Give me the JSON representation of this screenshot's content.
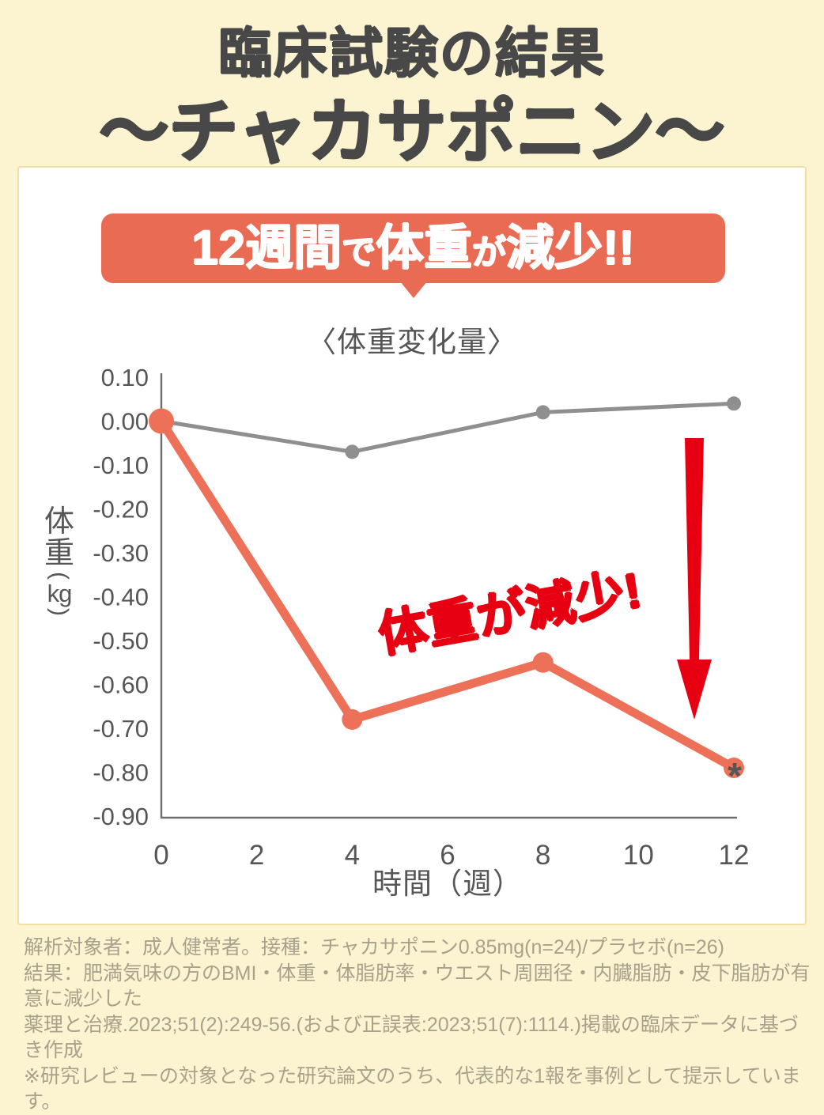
{
  "header": {
    "title_line1": "臨床試験の結果",
    "title_line2": "〜チャカサポニン〜"
  },
  "banner": {
    "segments": [
      "12週間",
      "で",
      "体重",
      "が",
      "減少!!"
    ]
  },
  "chart_data": {
    "type": "line",
    "title": "〈体重変化量〉",
    "xlabel": "時間（週）",
    "ylabel": "体重(kg)",
    "x": [
      0,
      4,
      8,
      12
    ],
    "xticks": [
      "0",
      "2",
      "4",
      "6",
      "8",
      "10",
      "12"
    ],
    "yticks": [
      "0.10",
      "0.00",
      "-0.10",
      "-0.20",
      "-0.30",
      "-0.40",
      "-0.50",
      "-0.60",
      "-0.70",
      "-0.80",
      "-0.90"
    ],
    "xlim": [
      0,
      12
    ],
    "ylim": [
      -0.9,
      0.1
    ],
    "grid": false,
    "legend": "none",
    "series": [
      {
        "name": "placebo-gray",
        "color": "#8f8f8f",
        "values": [
          0.0,
          -0.07,
          0.02,
          0.04
        ]
      },
      {
        "name": "chakasaponin-orange",
        "color": "#ed7058",
        "values": [
          0.0,
          -0.68,
          -0.55,
          -0.79
        ]
      }
    ],
    "annotations": [
      "体重が減少!",
      "*"
    ]
  },
  "footer": {
    "lines": [
      "解析対象者：成人健常者。接種：チャカサポニン0.85mg(n=24)/プラセボ(n=26)",
      "結果：肥満気味の方のBMI・体重・体脂肪率・ウエスト周囲径・内臓脂肪・皮下脂肪が有意に減少した",
      "薬理と治療.2023;51(2):249-56.(および正誤表:2023;51(7):1114.)掲載の臨床データに基づき作成",
      "※研究レビューの対象となった研究論文のうち、代表的な1報を事例として提示しています。"
    ]
  },
  "colors": {
    "page_bg": "#fcf3d1",
    "card_bg": "#ffffff",
    "banner_bg": "#ea6b53",
    "title_text": "#484848",
    "axis_text": "#565656",
    "placebo_line": "#8f8f8f",
    "treatment_line": "#ed7058",
    "red_accent": "#e60012",
    "footer_text": "#a8a18c"
  }
}
